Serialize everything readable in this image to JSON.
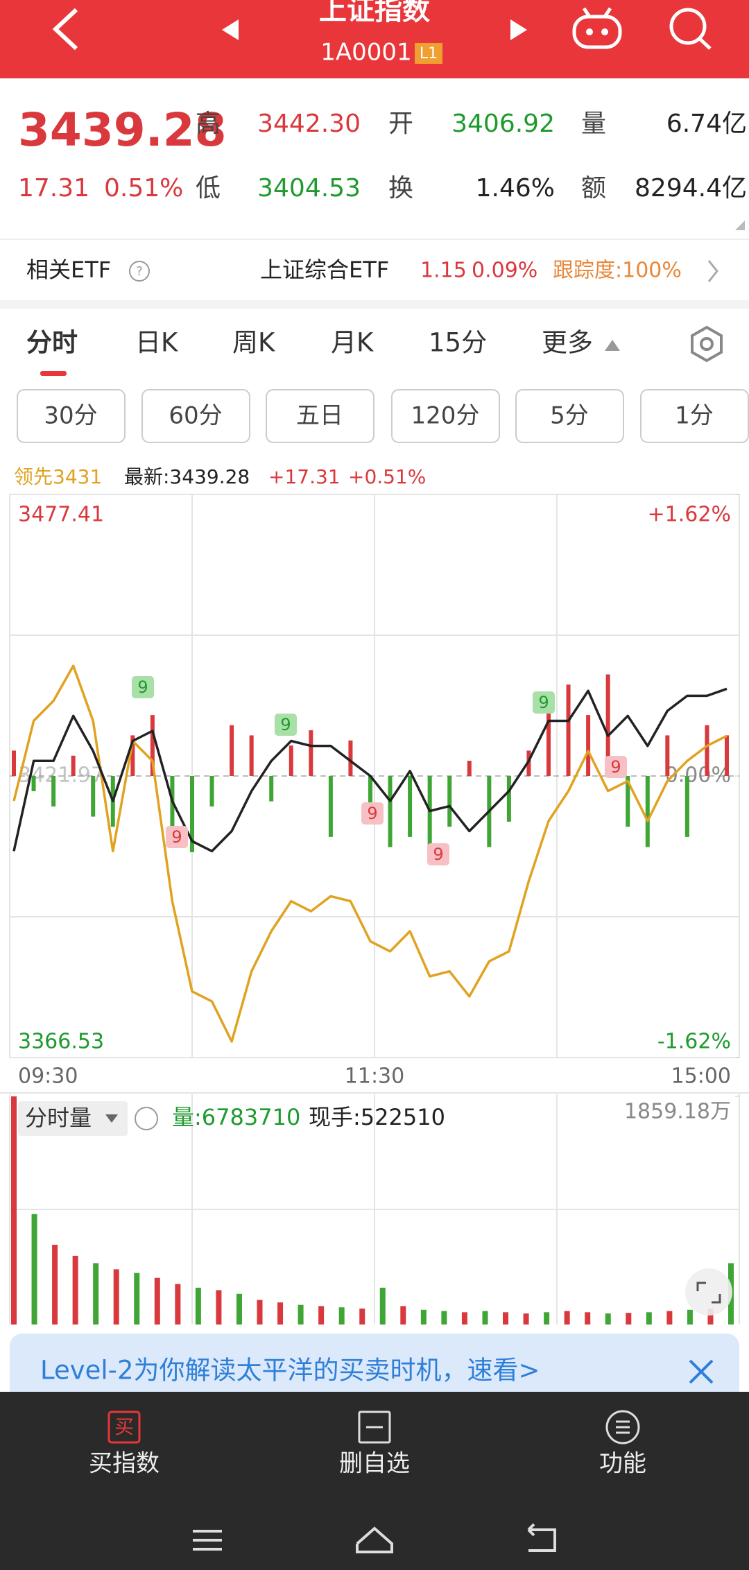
{
  "header": {
    "title": "上证指数",
    "code": "1A0001",
    "badge": "L1"
  },
  "quote": {
    "price": "3439.28",
    "change": "17.31",
    "change_pct": "0.51%",
    "fields": [
      {
        "label": "高",
        "value": "3442.30",
        "color": "#d9393d"
      },
      {
        "label": "开",
        "value": "3406.92",
        "color": "#1f9a2e"
      },
      {
        "label": "量",
        "value": "6.74亿",
        "color": "#222222"
      },
      {
        "label": "低",
        "value": "3404.53",
        "color": "#1f9a2e"
      },
      {
        "label": "换",
        "value": "1.46%",
        "color": "#222222"
      },
      {
        "label": "额",
        "value": "8294.4亿",
        "color": "#222222"
      }
    ]
  },
  "etf": {
    "label": "相关ETF",
    "name": "上证综合ETF",
    "price": "1.15",
    "pct": "0.09%",
    "tracking": "跟踪度:100%"
  },
  "tabs": [
    "分时",
    "日K",
    "周K",
    "月K",
    "15分",
    "更多"
  ],
  "sub_tabs": [
    "30分",
    "60分",
    "五日",
    "120分",
    "5分",
    "1分"
  ],
  "chart_data": [
    {
      "type": "line",
      "legend": [
        "最新:3439.28",
        "+17.31",
        "+0.51%"
      ],
      "ylim": [
        3366.53,
        3477.41
      ],
      "yticks": [
        3366.53,
        3421.97,
        3477.41
      ],
      "y2lim": [
        -1.62,
        1.62
      ],
      "y2ticks": [
        {
          "value": -1.62,
          "label": "-1.62%"
        },
        {
          "value": 0,
          "label": "0.00%"
        },
        {
          "value": 1.62,
          "label": "+1.62%"
        }
      ],
      "time_labels": [
        "09:30",
        "11:30",
        "15:00"
      ],
      "series": [
        {
          "name": "领先3431",
          "color": "#e0a21f",
          "values": [
            3417.04,
            3432.82,
            3436.77,
            3443.67,
            3432.82,
            3407.17,
            3428.87,
            3424.93,
            3397.31,
            3379.55,
            3377.58,
            3369.68,
            3383.5,
            3391.39,
            3397.31,
            3395.33,
            3398.29,
            3397.31,
            3389.41,
            3387.44,
            3391.39,
            3382.51,
            3383.5,
            3378.56,
            3385.47,
            3387.44,
            3401.25,
            3413.09,
            3419.01,
            3426.9,
            3419.01,
            3420.98,
            3413.09,
            3420.98,
            3424.93,
            3427.89,
            3429.86
          ]
        },
        {
          "color": "#222222",
          "values": [
            3407.17,
            3424.93,
            3424.93,
            3433.81,
            3426.9,
            3417.04,
            3428.87,
            3430.85,
            3417.04,
            3409.14,
            3407.17,
            3411.12,
            3419.01,
            3424.93,
            3428.87,
            3427.89,
            3427.89,
            3424.93,
            3421.97,
            3417.04,
            3422.96,
            3415.06,
            3416.05,
            3411.12,
            3415.06,
            3419.01,
            3424.93,
            3432.82,
            3432.82,
            3438.74,
            3429.86,
            3433.81,
            3427.89,
            3434.79,
            3437.75,
            3437.75,
            3439.13
          ]
        }
      ],
      "flow_bars": [
        5,
        -3,
        -6,
        4,
        -8,
        -10,
        8,
        12,
        -12,
        -15,
        -6,
        10,
        8,
        -5,
        6,
        9,
        -12,
        7,
        -8,
        -14,
        -12,
        -16,
        -10,
        3,
        -14,
        -9,
        5,
        14,
        18,
        12,
        20,
        -10,
        -14,
        8,
        -12,
        10,
        8
      ],
      "up_color": "#d9393d",
      "down_color": "#3fa535",
      "markers": [
        "9",
        "9",
        "9",
        "9",
        "9",
        "9",
        "9"
      ]
    },
    {
      "type": "bar",
      "title": "分时量",
      "volume_label": "量:6783710",
      "hand_label": "现手:522510",
      "ylim": [
        0,
        1859.18
      ],
      "yticks": [
        {
          "value": 1859.18,
          "label": "1859.18万"
        }
      ],
      "values": [
        1859,
        900,
        650,
        560,
        500,
        450,
        420,
        380,
        330,
        300,
        280,
        250,
        200,
        180,
        160,
        150,
        140,
        130,
        300,
        150,
        120,
        110,
        100,
        110,
        100,
        90,
        100,
        110,
        100,
        90,
        95,
        100,
        110,
        120,
        130,
        500
      ],
      "colors": [
        "#d9393d",
        "#3fa535",
        "#d9393d",
        "#d9393d",
        "#3fa535",
        "#d9393d",
        "#3fa535",
        "#d9393d",
        "#d9393d",
        "#3fa535",
        "#d9393d",
        "#3fa535",
        "#d9393d",
        "#d9393d",
        "#3fa535",
        "#d9393d",
        "#3fa535",
        "#d9393d",
        "#3fa535",
        "#d9393d",
        "#3fa535",
        "#3fa535",
        "#d9393d",
        "#3fa535",
        "#d9393d",
        "#d9393d",
        "#3fa535",
        "#d9393d",
        "#d9393d",
        "#3fa535",
        "#d9393d",
        "#3fa535",
        "#d9393d",
        "#3fa535",
        "#d9393d",
        "#3fa535"
      ]
    }
  ],
  "banner": {
    "text": "Level-2为你解读太平洋的买卖时机，速看>"
  },
  "bottom_nav": {
    "buy_icon": "买",
    "items": [
      "买指数",
      "删自选",
      "功能"
    ]
  }
}
